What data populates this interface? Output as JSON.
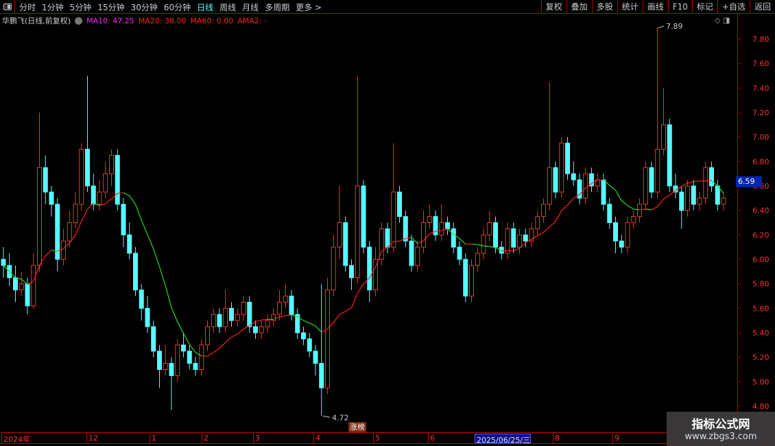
{
  "toolbar": {
    "periods": [
      "分时",
      "1分钟",
      "5分钟",
      "15分钟",
      "30分钟",
      "60分钟",
      "日线",
      "周线",
      "月线",
      "多周期",
      "更多 >"
    ],
    "active": "日线",
    "right_buttons": [
      "复权",
      "叠加",
      "多股",
      "统计",
      "画线",
      "F10",
      "标记",
      "+自选",
      "返回"
    ]
  },
  "info": {
    "title": "华鹏飞(日线,前复权)",
    "ma10": "MA10: 47.25",
    "ma20": "MA20: 38.00",
    "ma60": "MA60: 0.00",
    "ama2": "AMA2: -",
    "ma10_color": "#ff22ff",
    "ma_color": "#ff2020"
  },
  "current_price": "6.59",
  "annotations": {
    "high": "7.89",
    "low": "4.72",
    "badge": "涨榜"
  },
  "timeline": {
    "labels": [
      "2024年",
      "12",
      "1",
      "2",
      "3",
      "4",
      "5",
      "6",
      "2025/06/25/三",
      "8",
      "9"
    ],
    "selected": "2025/06/25/三"
  },
  "watermark": {
    "line1": "指标公式网",
    "line2": "www.zbgs3.com"
  },
  "colors": {
    "up": "#ff3030",
    "down": "#54ffff",
    "ma_up": "#ff2020",
    "ma_down": "#22dd22",
    "axis": "#aa0000"
  },
  "chart_data": {
    "type": "candlestick",
    "ylim": [
      4.72,
      7.89
    ],
    "yticks": [
      "4.80",
      "5.00",
      "5.20",
      "5.40",
      "5.60",
      "5.80",
      "6.00",
      "6.20",
      "6.40",
      "6.60",
      "6.80",
      "7.00",
      "7.20",
      "7.40",
      "7.60",
      "7.80"
    ],
    "ohlc": [
      [
        6.0,
        6.1,
        5.85,
        5.95
      ],
      [
        5.95,
        6.05,
        5.78,
        5.85
      ],
      [
        5.85,
        5.95,
        5.65,
        5.75
      ],
      [
        5.75,
        5.9,
        5.7,
        5.8
      ],
      [
        5.8,
        5.85,
        5.55,
        5.62
      ],
      [
        5.62,
        6.05,
        5.6,
        5.95
      ],
      [
        5.95,
        7.2,
        5.9,
        6.75
      ],
      [
        6.75,
        6.85,
        6.45,
        6.55
      ],
      [
        6.55,
        6.6,
        6.35,
        6.45
      ],
      [
        6.45,
        6.5,
        5.9,
        6.0
      ],
      [
        6.0,
        6.25,
        5.95,
        6.15
      ],
      [
        6.15,
        6.4,
        6.1,
        6.3
      ],
      [
        6.3,
        6.55,
        6.25,
        6.45
      ],
      [
        6.45,
        6.95,
        6.4,
        6.9
      ],
      [
        6.9,
        7.5,
        6.55,
        6.6
      ],
      [
        6.6,
        6.7,
        6.4,
        6.45
      ],
      [
        6.45,
        6.65,
        6.4,
        6.55
      ],
      [
        6.55,
        6.8,
        6.5,
        6.7
      ],
      [
        6.7,
        6.9,
        6.6,
        6.85
      ],
      [
        6.85,
        6.9,
        6.4,
        6.45
      ],
      [
        6.45,
        6.5,
        6.1,
        6.2
      ],
      [
        6.2,
        6.3,
        6.0,
        6.05
      ],
      [
        6.05,
        6.1,
        5.7,
        5.75
      ],
      [
        5.75,
        5.8,
        5.5,
        5.6
      ],
      [
        5.6,
        5.7,
        5.4,
        5.45
      ],
      [
        5.45,
        5.5,
        5.2,
        5.25
      ],
      [
        5.25,
        5.3,
        4.95,
        5.1
      ],
      [
        5.1,
        5.3,
        5.05,
        5.15
      ],
      [
        5.15,
        5.2,
        4.77,
        5.05
      ],
      [
        5.05,
        5.35,
        5.0,
        5.3
      ],
      [
        5.3,
        5.4,
        5.2,
        5.25
      ],
      [
        5.25,
        5.3,
        5.1,
        5.15
      ],
      [
        5.15,
        5.2,
        5.05,
        5.1
      ],
      [
        5.1,
        5.35,
        5.05,
        5.3
      ],
      [
        5.3,
        5.5,
        5.25,
        5.45
      ],
      [
        5.45,
        5.6,
        5.4,
        5.55
      ],
      [
        5.55,
        5.6,
        5.4,
        5.45
      ],
      [
        5.45,
        5.75,
        5.4,
        5.6
      ],
      [
        5.6,
        5.65,
        5.45,
        5.5
      ],
      [
        5.5,
        5.6,
        5.45,
        5.55
      ],
      [
        5.55,
        5.7,
        5.5,
        5.65
      ],
      [
        5.65,
        5.7,
        5.4,
        5.45
      ],
      [
        5.45,
        5.5,
        5.35,
        5.4
      ],
      [
        5.4,
        5.5,
        5.35,
        5.45
      ],
      [
        5.45,
        5.55,
        5.4,
        5.5
      ],
      [
        5.5,
        5.6,
        5.45,
        5.55
      ],
      [
        5.55,
        5.75,
        5.5,
        5.65
      ],
      [
        5.65,
        5.8,
        5.6,
        5.7
      ],
      [
        5.7,
        5.75,
        5.5,
        5.55
      ],
      [
        5.55,
        5.6,
        5.35,
        5.4
      ],
      [
        5.4,
        5.45,
        5.3,
        5.35
      ],
      [
        5.35,
        5.4,
        5.2,
        5.25
      ],
      [
        5.25,
        5.3,
        5.05,
        5.15
      ],
      [
        5.15,
        5.8,
        4.72,
        4.95
      ],
      [
        4.95,
        5.85,
        4.9,
        5.75
      ],
      [
        5.75,
        6.2,
        5.7,
        6.1
      ],
      [
        6.1,
        6.6,
        6.0,
        6.3
      ],
      [
        6.3,
        6.35,
        5.9,
        5.95
      ],
      [
        5.95,
        6.0,
        5.75,
        5.85
      ],
      [
        5.85,
        7.5,
        5.8,
        6.6
      ],
      [
        6.6,
        6.65,
        6.05,
        6.1
      ],
      [
        6.1,
        6.15,
        5.65,
        5.75
      ],
      [
        5.75,
        6.1,
        5.7,
        6.0
      ],
      [
        6.0,
        6.3,
        5.95,
        6.25
      ],
      [
        6.25,
        6.3,
        6.05,
        6.1
      ],
      [
        6.1,
        6.95,
        6.05,
        6.55
      ],
      [
        6.55,
        6.6,
        6.3,
        6.35
      ],
      [
        6.35,
        6.4,
        6.1,
        6.15
      ],
      [
        6.15,
        6.2,
        5.9,
        5.95
      ],
      [
        5.95,
        6.15,
        5.9,
        6.1
      ],
      [
        6.1,
        6.4,
        6.05,
        6.3
      ],
      [
        6.3,
        6.45,
        6.25,
        6.35
      ],
      [
        6.35,
        6.4,
        6.15,
        6.2
      ],
      [
        6.2,
        6.45,
        6.15,
        6.3
      ],
      [
        6.3,
        6.35,
        6.2,
        6.25
      ],
      [
        6.25,
        6.3,
        6.05,
        6.1
      ],
      [
        6.1,
        6.15,
        5.95,
        6.0
      ],
      [
        6.0,
        6.05,
        5.65,
        5.7
      ],
      [
        5.7,
        6.0,
        5.65,
        5.95
      ],
      [
        5.95,
        6.1,
        5.9,
        6.05
      ],
      [
        6.05,
        6.25,
        6.0,
        6.2
      ],
      [
        6.2,
        6.4,
        6.15,
        6.3
      ],
      [
        6.3,
        6.35,
        6.05,
        6.1
      ],
      [
        6.1,
        6.15,
        6.0,
        6.05
      ],
      [
        6.05,
        6.3,
        6.0,
        6.25
      ],
      [
        6.25,
        6.3,
        6.05,
        6.1
      ],
      [
        6.1,
        6.25,
        6.05,
        6.2
      ],
      [
        6.2,
        6.25,
        6.1,
        6.15
      ],
      [
        6.15,
        6.3,
        6.1,
        6.25
      ],
      [
        6.25,
        6.4,
        6.2,
        6.35
      ],
      [
        6.35,
        6.5,
        6.3,
        6.45
      ],
      [
        6.45,
        7.45,
        6.4,
        6.75
      ],
      [
        6.75,
        6.8,
        6.5,
        6.55
      ],
      [
        6.55,
        7.0,
        6.5,
        6.95
      ],
      [
        6.95,
        7.0,
        6.65,
        6.7
      ],
      [
        6.7,
        6.8,
        6.6,
        6.65
      ],
      [
        6.65,
        6.7,
        6.45,
        6.5
      ],
      [
        6.5,
        6.75,
        6.45,
        6.7
      ],
      [
        6.7,
        6.75,
        6.55,
        6.6
      ],
      [
        6.6,
        6.7,
        6.55,
        6.65
      ],
      [
        6.65,
        6.7,
        6.4,
        6.45
      ],
      [
        6.45,
        6.5,
        6.25,
        6.3
      ],
      [
        6.3,
        6.35,
        6.05,
        6.15
      ],
      [
        6.15,
        6.2,
        6.05,
        6.1
      ],
      [
        6.1,
        6.35,
        6.05,
        6.3
      ],
      [
        6.3,
        6.4,
        6.25,
        6.35
      ],
      [
        6.35,
        6.5,
        6.3,
        6.45
      ],
      [
        6.45,
        6.8,
        6.4,
        6.75
      ],
      [
        6.75,
        6.8,
        6.5,
        6.55
      ],
      [
        6.55,
        7.89,
        6.5,
        6.9
      ],
      [
        6.9,
        7.4,
        6.85,
        7.1
      ],
      [
        7.1,
        7.15,
        6.55,
        6.6
      ],
      [
        6.6,
        6.7,
        6.5,
        6.55
      ],
      [
        6.55,
        6.6,
        6.25,
        6.4
      ],
      [
        6.4,
        6.65,
        6.35,
        6.6
      ],
      [
        6.6,
        6.65,
        6.4,
        6.45
      ],
      [
        6.45,
        6.55,
        6.4,
        6.5
      ],
      [
        6.5,
        6.8,
        6.45,
        6.75
      ],
      [
        6.75,
        6.8,
        6.55,
        6.6
      ],
      [
        6.6,
        6.65,
        6.4,
        6.45
      ],
      [
        6.45,
        6.55,
        6.4,
        6.5
      ]
    ]
  }
}
